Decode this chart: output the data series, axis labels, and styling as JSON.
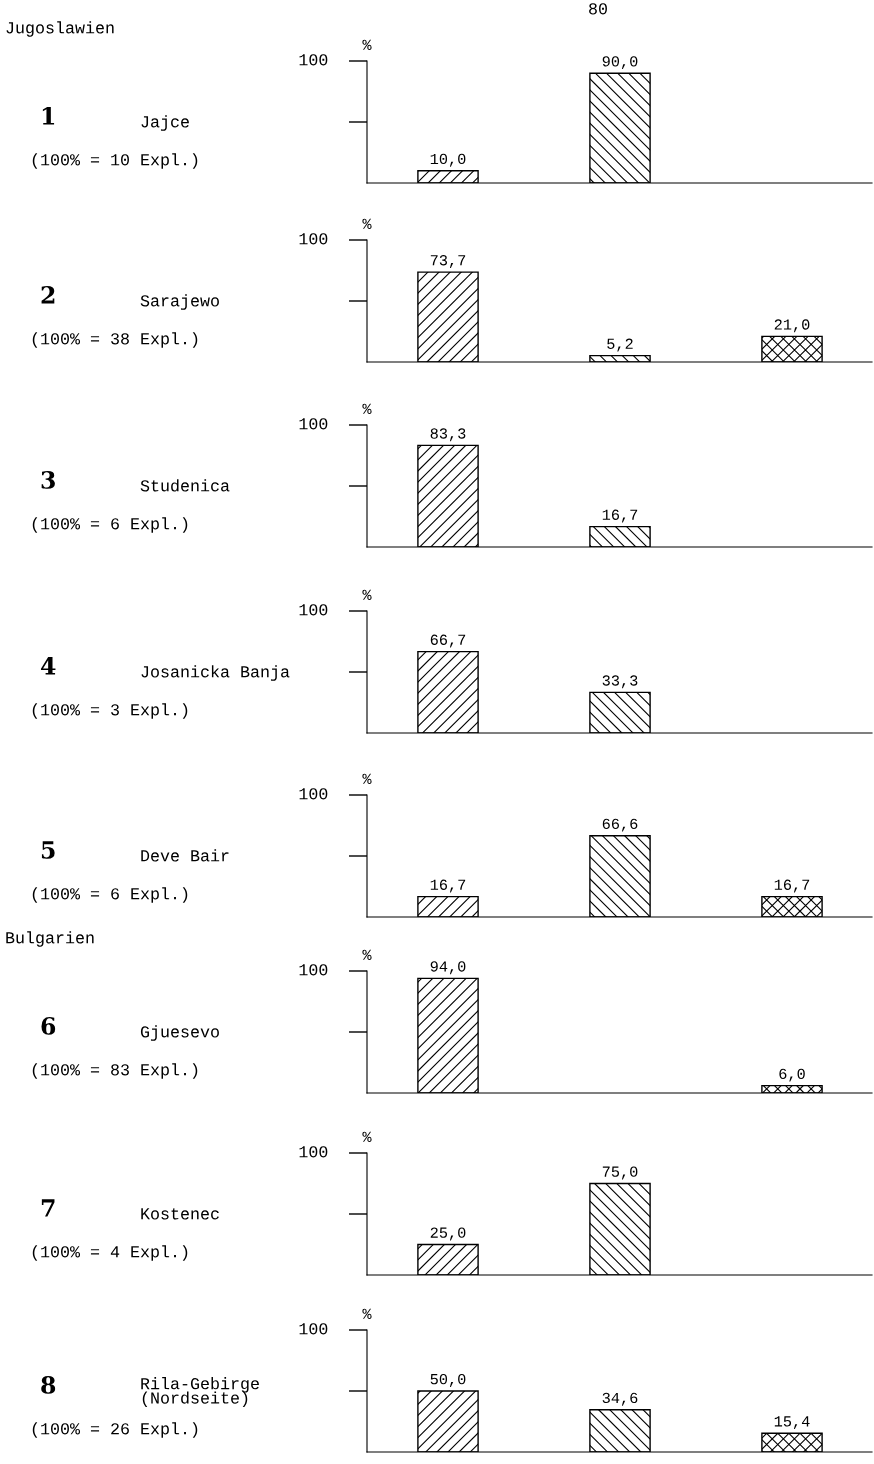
{
  "chart_data": [
    {
      "type": "bar",
      "ylabel": "%",
      "annotations": [
        "1",
        "Jajce",
        "(100% = 10 Expl.)",
        "Jugoslawien",
        "80"
      ],
      "categories": [
        null,
        null,
        null
      ],
      "values": [
        10.0,
        90.0,
        null
      ],
      "value_labels": [
        "10,0",
        "90,0",
        null
      ],
      "color": "#000000",
      "ylim": [
        0,
        100
      ],
      "ref_lines": [
        {
          "axis": "y",
          "value": 100,
          "label": "100"
        }
      ]
    },
    {
      "type": "bar",
      "ylabel": "%",
      "annotations": [
        "2",
        "Sarajewo",
        "(100% = 38 Expl.)"
      ],
      "categories": [
        null,
        null,
        null
      ],
      "values": [
        73.7,
        5.2,
        21.0
      ],
      "value_labels": [
        "73,7",
        "5,2",
        "21,0"
      ],
      "color": "#000000",
      "ylim": [
        0,
        100
      ],
      "ref_lines": [
        {
          "axis": "y",
          "value": 100,
          "label": "100"
        }
      ]
    },
    {
      "type": "bar",
      "ylabel": "%",
      "annotations": [
        "3",
        "Studenica",
        "(100% = 6 Expl.)"
      ],
      "categories": [
        null,
        null,
        null
      ],
      "values": [
        83.3,
        16.7,
        null
      ],
      "value_labels": [
        "83,3",
        "16,7",
        null
      ],
      "color": "#000000",
      "ylim": [
        0,
        100
      ],
      "ref_lines": [
        {
          "axis": "y",
          "value": 100,
          "label": "100"
        }
      ]
    },
    {
      "type": "bar",
      "ylabel": "%",
      "annotations": [
        "4",
        "Josanicka Banja",
        "(100% = 3 Expl.)"
      ],
      "categories": [
        null,
        null,
        null
      ],
      "values": [
        66.7,
        33.3,
        null
      ],
      "value_labels": [
        "66,7",
        "33,3",
        null
      ],
      "color": "#000000",
      "ylim": [
        0,
        100
      ],
      "ref_lines": [
        {
          "axis": "y",
          "value": 100,
          "label": "100"
        }
      ]
    },
    {
      "type": "bar",
      "ylabel": "%",
      "annotations": [
        "5",
        "Deve Bair",
        "(100% = 6 Expl.)"
      ],
      "categories": [
        null,
        null,
        null
      ],
      "values": [
        16.7,
        66.6,
        16.7
      ],
      "value_labels": [
        "16,7",
        "66,6",
        "16,7"
      ],
      "color": "#000000",
      "ylim": [
        0,
        100
      ],
      "ref_lines": [
        {
          "axis": "y",
          "value": 100,
          "label": "100"
        }
      ]
    },
    {
      "type": "bar",
      "ylabel": "%",
      "annotations": [
        "6",
        "Gjuesevo",
        "(100% = 83 Expl.)",
        "Bulgarien"
      ],
      "categories": [
        null,
        null,
        null
      ],
      "values": [
        94.0,
        null,
        6.0
      ],
      "value_labels": [
        "94,0",
        null,
        "6,0"
      ],
      "color": "#000000",
      "ylim": [
        0,
        100
      ],
      "ref_lines": [
        {
          "axis": "y",
          "value": 100,
          "label": "100"
        }
      ]
    },
    {
      "type": "bar",
      "ylabel": "%",
      "annotations": [
        "7",
        "Kostenec",
        "(100% = 4 Expl.)"
      ],
      "categories": [
        null,
        null,
        null
      ],
      "values": [
        25.0,
        75.0,
        null
      ],
      "value_labels": [
        "25,0",
        "75,0",
        null
      ],
      "color": "#000000",
      "ylim": [
        0,
        100
      ],
      "ref_lines": [
        {
          "axis": "y",
          "value": 100,
          "label": "100"
        }
      ]
    },
    {
      "type": "bar",
      "ylabel": "%",
      "annotations": [
        "8",
        "Rila-Gebirge\n(Nordseite)",
        "(100% = 26 Expl.)"
      ],
      "categories": [
        null,
        null,
        null
      ],
      "values": [
        50.0,
        34.6,
        15.4
      ],
      "value_labels": [
        "50,0",
        "34,6",
        "15,4"
      ],
      "color": "#000000",
      "ylim": [
        0,
        100
      ],
      "ref_lines": [
        {
          "axis": "y",
          "value": 100,
          "label": "100"
        }
      ]
    }
  ]
}
